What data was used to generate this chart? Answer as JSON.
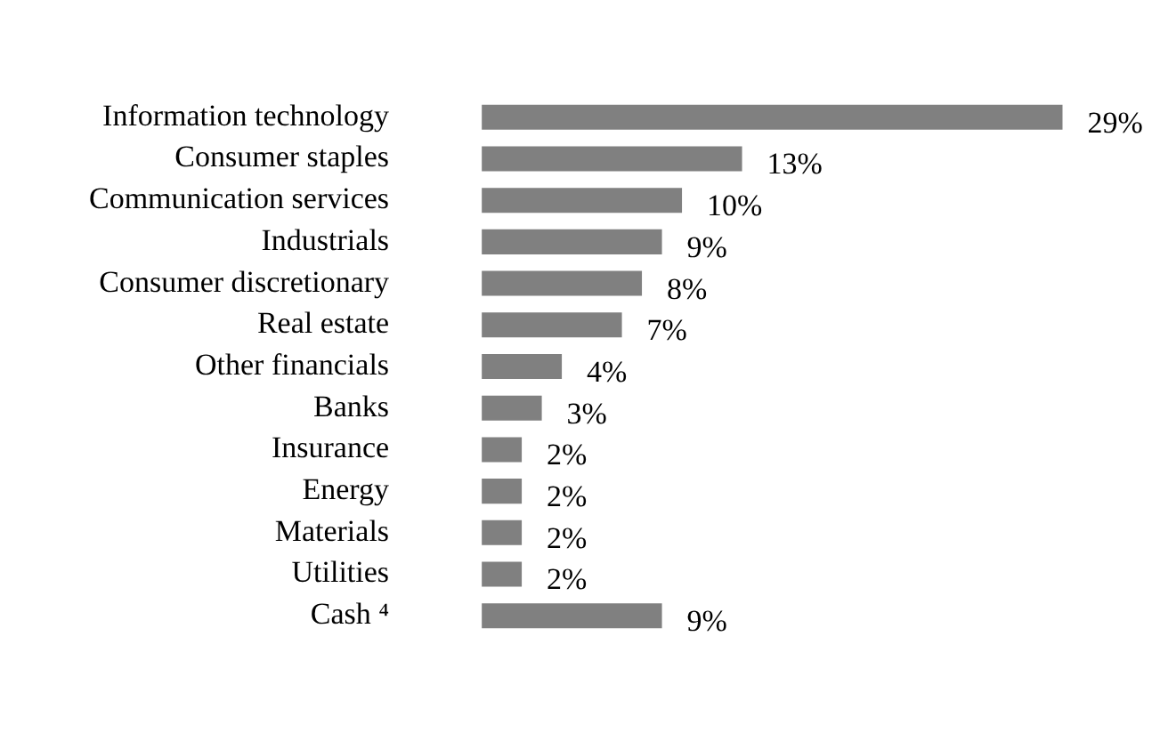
{
  "chart_data": {
    "type": "bar",
    "orientation": "horizontal",
    "categories": [
      "Information technology",
      "Consumer staples",
      "Communication services",
      "Industrials",
      "Consumer discretionary",
      "Real estate",
      "Other financials",
      "Banks",
      "Insurance",
      "Energy",
      "Materials",
      "Utilities",
      "Cash ⁴"
    ],
    "values": [
      29,
      13,
      10,
      9,
      8,
      7,
      4,
      3,
      2,
      2,
      2,
      2,
      9
    ],
    "value_labels": [
      "29%",
      "13%",
      "10%",
      "9%",
      "8%",
      "7%",
      "4%",
      "3%",
      "2%",
      "2%",
      "2%",
      "2%",
      "9%"
    ],
    "color": "#808080",
    "legend": false,
    "tick_labels": "y"
  }
}
